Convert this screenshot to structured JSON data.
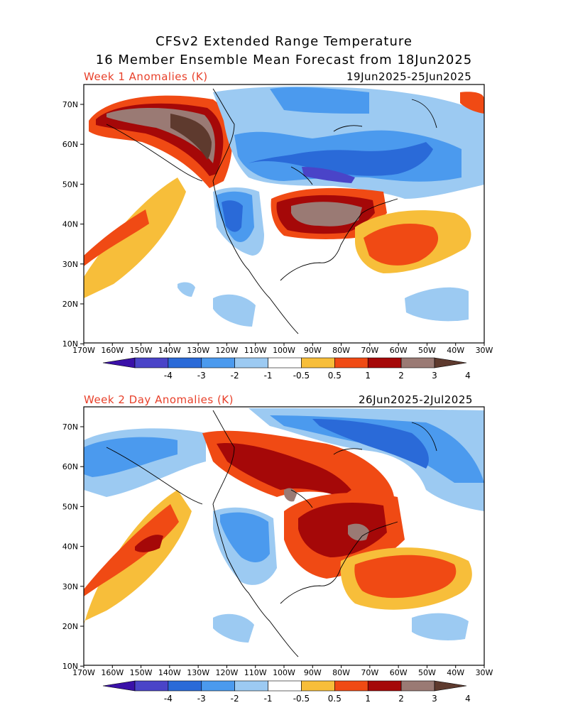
{
  "header": {
    "line1": "CFSv2 Extended Range Temperature",
    "line2": "16 Member Ensemble Mean Forecast from 18Jun2025"
  },
  "panels": [
    {
      "label": "Week 1 Anomalies (K)",
      "dates": "19Jun2025-25Jun2025"
    },
    {
      "label": "Week 2 Day Anomalies (K)",
      "dates": "26Jun2025-2Jul2025"
    }
  ],
  "axes": {
    "lat_ticks": [
      "70N",
      "60N",
      "50N",
      "40N",
      "30N",
      "20N",
      "10N"
    ],
    "lon_ticks": [
      "170W",
      "160W",
      "150W",
      "140W",
      "130W",
      "120W",
      "110W",
      "100W",
      "90W",
      "80W",
      "70W",
      "60W",
      "50W",
      "40W",
      "30W"
    ]
  },
  "colorbar": {
    "labels": [
      "-4",
      "-3",
      "-2",
      "-1",
      "-0.5",
      "0.5",
      "1",
      "2",
      "3",
      "4"
    ],
    "colors": [
      "#3a10a8",
      "#4a44c8",
      "#2a6ad8",
      "#4b9aee",
      "#9ccaf2",
      "#ffffff",
      "#f7be3a",
      "#f04a14",
      "#a50808",
      "#9a7a74",
      "#5e3a2e"
    ]
  },
  "colors": {
    "label_red": "#e8402a"
  }
}
